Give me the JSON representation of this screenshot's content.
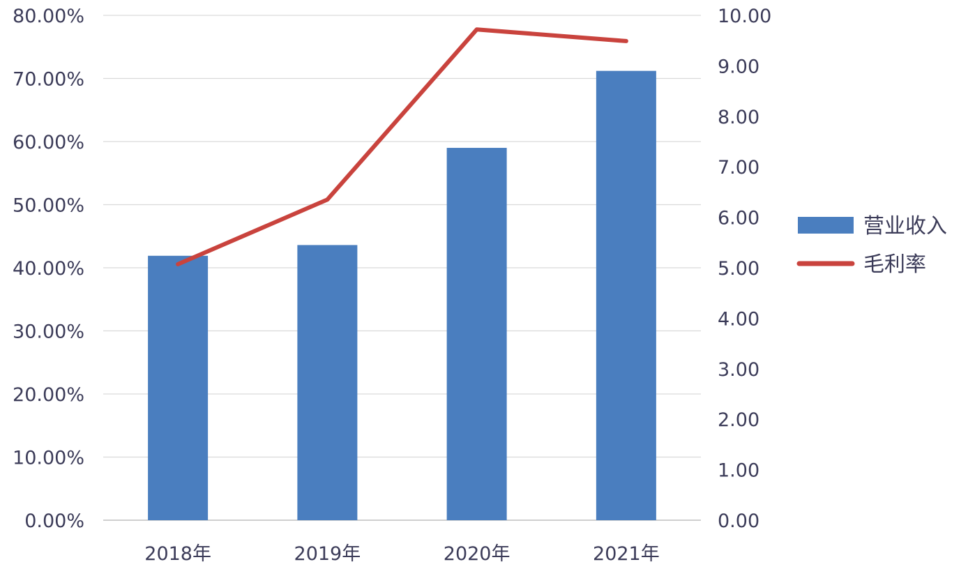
{
  "chart_data": {
    "type": "bar",
    "categories": [
      "2018年",
      "2019年",
      "2020年",
      "2021年"
    ],
    "series": [
      {
        "name": "营业收入",
        "type": "bar",
        "axis": "left",
        "color": "#4a7ebf",
        "values": [
          0.419,
          0.436,
          0.59,
          0.712
        ]
      },
      {
        "name": "毛利率",
        "type": "line",
        "axis": "right",
        "color": "#c9433d",
        "values": [
          5.07,
          6.35,
          9.72,
          9.49
        ]
      }
    ],
    "y_left": {
      "ylim": [
        0,
        0.8
      ],
      "ticks": [
        0,
        0.1,
        0.2,
        0.3,
        0.4,
        0.5,
        0.6,
        0.7,
        0.8
      ],
      "tick_labels": [
        "0.00%",
        "10.00%",
        "20.00%",
        "30.00%",
        "40.00%",
        "50.00%",
        "60.00%",
        "70.00%",
        "80.00%"
      ]
    },
    "y_right": {
      "ylim": [
        0,
        10
      ],
      "ticks": [
        0,
        1,
        2,
        3,
        4,
        5,
        6,
        7,
        8,
        9,
        10
      ],
      "tick_labels": [
        "0.00",
        "1.00",
        "2.00",
        "3.00",
        "4.00",
        "5.00",
        "6.00",
        "7.00",
        "8.00",
        "9.00",
        "10.00"
      ]
    },
    "grid": true,
    "legend": {
      "position": "right"
    },
    "title": "",
    "xlabel": "",
    "ylabel": ""
  }
}
